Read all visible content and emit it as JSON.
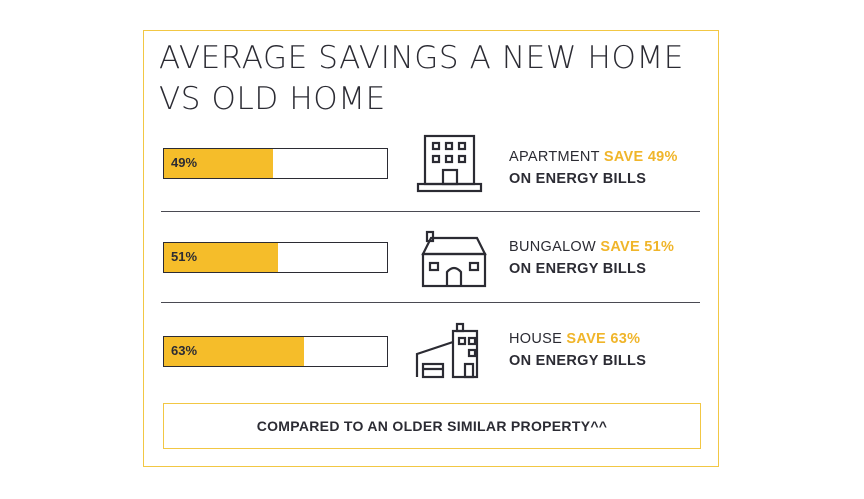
{
  "chart_data": {
    "type": "bar",
    "title": [
      "AVERAGE SAVINGS A NEW HOME",
      "VS OLD HOME"
    ],
    "categories": [
      "APARTMENT",
      "BUNGALOW",
      "HOUSE"
    ],
    "values": [
      49,
      51,
      63
    ],
    "value_labels": [
      "49%",
      "51%",
      "63%"
    ],
    "xlim": [
      0,
      100
    ],
    "captions": [
      {
        "type": "APARTMENT",
        "save": "SAVE 49%",
        "rest": "ON ENERGY BILLS",
        "icon": "apartment-building-icon"
      },
      {
        "type": "BUNGALOW",
        "save": "SAVE 51%",
        "rest": "ON ENERGY BILLS",
        "icon": "bungalow-icon"
      },
      {
        "type": "HOUSE",
        "save": "SAVE 63%",
        "rest": "ON ENERGY BILLS",
        "icon": "house-icon"
      }
    ],
    "footnote": "COMPARED TO AN OLDER SIMILAR PROPERTY^^"
  },
  "colors": {
    "fill": "#f5bd2a",
    "border": "#f2c744",
    "text": "#2b2b33",
    "accent_text": "#f0b52a"
  }
}
